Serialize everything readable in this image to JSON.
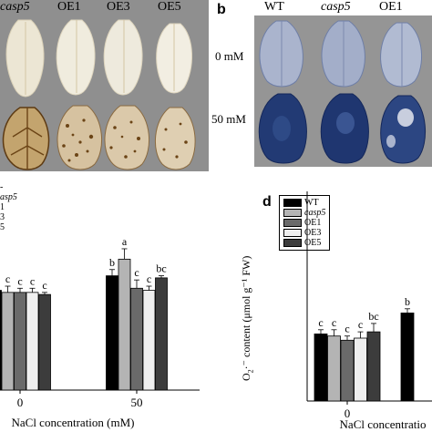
{
  "panel_a": {
    "col_labels": [
      "casp5",
      "OE1",
      "OE3",
      "OE5"
    ]
  },
  "panel_b": {
    "letter": "b",
    "col_labels": [
      "WT",
      "casp5",
      "OE1"
    ],
    "row_labels": [
      "0 mM",
      "50 mM"
    ]
  },
  "panel_c": {
    "legend_fragments": [
      "-",
      "asp5",
      "1",
      "3",
      "5"
    ]
  },
  "panel_d": {
    "letter": "d",
    "y_label_main": "O",
    "y_label_sub": "2",
    "y_label_rest": "·⁻ content (μmol g⁻¹ FW)"
  },
  "chart_data": [
    {
      "type": "bar",
      "panel": "c",
      "xlabel": "NaCl concentration (mM)",
      "ylabel": "",
      "categories": [
        "0",
        "50"
      ],
      "series": [
        {
          "name": "WT",
          "values": [
            0.48,
            0.55
          ],
          "err": [
            0.02,
            0.03
          ],
          "sig": [
            "c",
            "b"
          ]
        },
        {
          "name": "casp5",
          "values": [
            0.47,
            0.63
          ],
          "err": [
            0.03,
            0.05
          ],
          "sig": [
            "c",
            "a"
          ]
        },
        {
          "name": "OE1",
          "values": [
            0.47,
            0.49
          ],
          "err": [
            0.02,
            0.04
          ],
          "sig": [
            "c",
            "c"
          ]
        },
        {
          "name": "OE3",
          "values": [
            0.47,
            0.48
          ],
          "err": [
            0.02,
            0.02
          ],
          "sig": [
            "c",
            "c"
          ]
        },
        {
          "name": "OE5",
          "values": [
            0.46,
            0.54
          ],
          "err": [
            0.01,
            0.01
          ],
          "sig": [
            "c",
            "bc"
          ]
        }
      ],
      "ylim": [
        0,
        1
      ]
    },
    {
      "type": "bar",
      "panel": "d",
      "xlabel": "NaCl concentratio",
      "categories": [
        "0",
        ""
      ],
      "series": [
        {
          "name": "WT",
          "values": [
            0.32,
            0.42
          ],
          "err": [
            0.02,
            0.02
          ],
          "sig": [
            "c",
            "b"
          ]
        },
        {
          "name": "casp5",
          "values": [
            0.31,
            null
          ],
          "err": [
            0.03,
            null
          ],
          "sig": [
            "c",
            ""
          ]
        },
        {
          "name": "OE1",
          "values": [
            0.29,
            null
          ],
          "err": [
            0.02,
            null
          ],
          "sig": [
            "c",
            ""
          ]
        },
        {
          "name": "OE3",
          "values": [
            0.3,
            null
          ],
          "err": [
            0.03,
            null
          ],
          "sig": [
            "c",
            ""
          ]
        },
        {
          "name": "OE5",
          "values": [
            0.33,
            null
          ],
          "err": [
            0.04,
            null
          ],
          "sig": [
            "bc",
            ""
          ]
        }
      ],
      "legend": [
        "WT",
        "casp5",
        "OE1",
        "OE3",
        "OE5"
      ],
      "ylim": [
        0,
        1
      ]
    }
  ],
  "colors": {
    "bar_fills": [
      "#000000",
      "#b4b4b4",
      "#6a6a6a",
      "#efefef",
      "#3c3c3c"
    ],
    "photo_a_bg": "#8f8f8f",
    "photo_b_bg": "#959595",
    "leaf_a_top": "#ece8da",
    "leaf_a_bottom": "#c7b391",
    "stain_brown": "#5d3a12",
    "leaf_b_top": "#aab4cd",
    "leaf_b_bottom": "#223a74"
  }
}
